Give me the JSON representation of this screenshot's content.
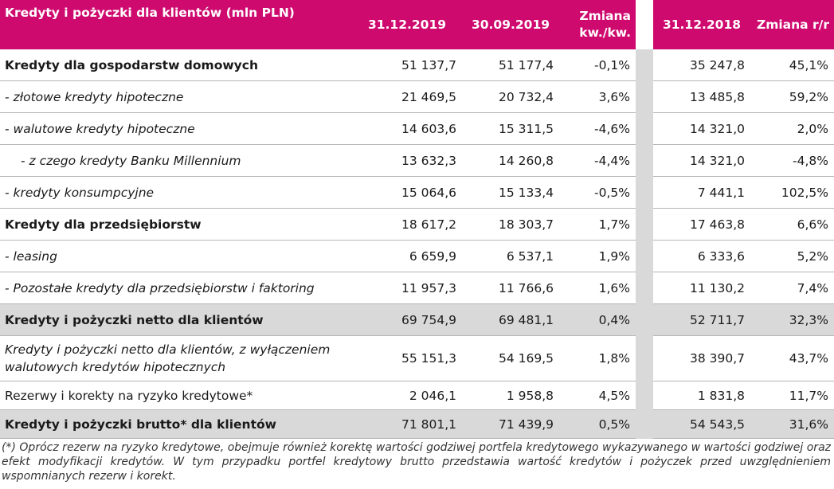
{
  "header": {
    "title": "Kredyty i pożyczki dla klientów (mln PLN)",
    "col1": "31.12.2019",
    "col2": "30.09.2019",
    "col3": "Zmiana kw./kw.",
    "col5": "31.12.2018",
    "col6": "Zmiana r/r"
  },
  "rows": [
    {
      "label": "Kredyty dla gospodarstw domowych",
      "v1": "51 137,7",
      "v2": "51 177,4",
      "v3": "-0,1%",
      "v5": "35 247,8",
      "v6": "45,1%"
    },
    {
      "label": " - złotowe kredyty hipoteczne",
      "v1": "21 469,5",
      "v2": "20 732,4",
      "v3": "3,6%",
      "v5": "13 485,8",
      "v6": "59,2%"
    },
    {
      "label": " - walutowe kredyty hipoteczne",
      "v1": "14 603,6",
      "v2": "15 311,5",
      "v3": "-4,6%",
      "v5": "14 321,0",
      "v6": "2,0%"
    },
    {
      "label": "- z czego kredyty Banku Millennium",
      "v1": "13 632,3",
      "v2": "14 260,8",
      "v3": "-4,4%",
      "v5": "14 321,0",
      "v6": "-4,8%"
    },
    {
      "label": " - kredyty konsumpcyjne",
      "v1": "15 064,6",
      "v2": "15 133,4",
      "v3": "-0,5%",
      "v5": "7 441,1",
      "v6": "102,5%"
    },
    {
      "label": "Kredyty dla przedsiębiorstw",
      "v1": "18 617,2",
      "v2": "18 303,7",
      "v3": "1,7%",
      "v5": "17 463,8",
      "v6": "6,6%"
    },
    {
      "label": " - leasing",
      "v1": "6 659,9",
      "v2": "6 537,1",
      "v3": "1,9%",
      "v5": "6 333,6",
      "v6": "5,2%"
    },
    {
      "label": " - Pozostałe kredyty dla przedsiębiorstw i faktoring",
      "v1": "11 957,3",
      "v2": "11 766,6",
      "v3": "1,6%",
      "v5": "11 130,2",
      "v6": "7,4%"
    },
    {
      "label": "Kredyty i pożyczki netto dla klientów",
      "v1": "69 754,9",
      "v2": "69 481,1",
      "v3": "0,4%",
      "v5": "52 711,7",
      "v6": "32,3%"
    },
    {
      "label": "Kredyty i pożyczki netto dla klientów, z wyłączeniem walutowych kredytów hipotecznych",
      "v1": "55 151,3",
      "v2": "54 169,5",
      "v3": "1,8%",
      "v5": "38 390,7",
      "v6": "43,7%"
    },
    {
      "label": "Rezerwy i korekty na ryzyko kredytowe*",
      "v1": "2 046,1",
      "v2": "1 958,8",
      "v3": "4,5%",
      "v5": "1 831,8",
      "v6": "11,7%"
    },
    {
      "label": "Kredyty i pożyczki brutto* dla klientów",
      "v1": "71 801,1",
      "v2": "71 439,9",
      "v3": "0,5%",
      "v5": "54 543,5",
      "v6": "31,6%"
    }
  ],
  "footnote": "(*) Oprócz rezerw na ryzyko kredytowe, obejmuje również korektę wartości godziwej portfela kredytowego wykazywanego w wartości godziwej oraz efekt modyfikacji kredytów. W tym przypadku portfel kredytowy brutto przedstawia wartość kredytów i pożyczek przed uwzględnieniem wspomnianych rezerw i korekt.",
  "colors": {
    "header_bg": "#cf0a6f",
    "shade": "#d9d9d9"
  }
}
